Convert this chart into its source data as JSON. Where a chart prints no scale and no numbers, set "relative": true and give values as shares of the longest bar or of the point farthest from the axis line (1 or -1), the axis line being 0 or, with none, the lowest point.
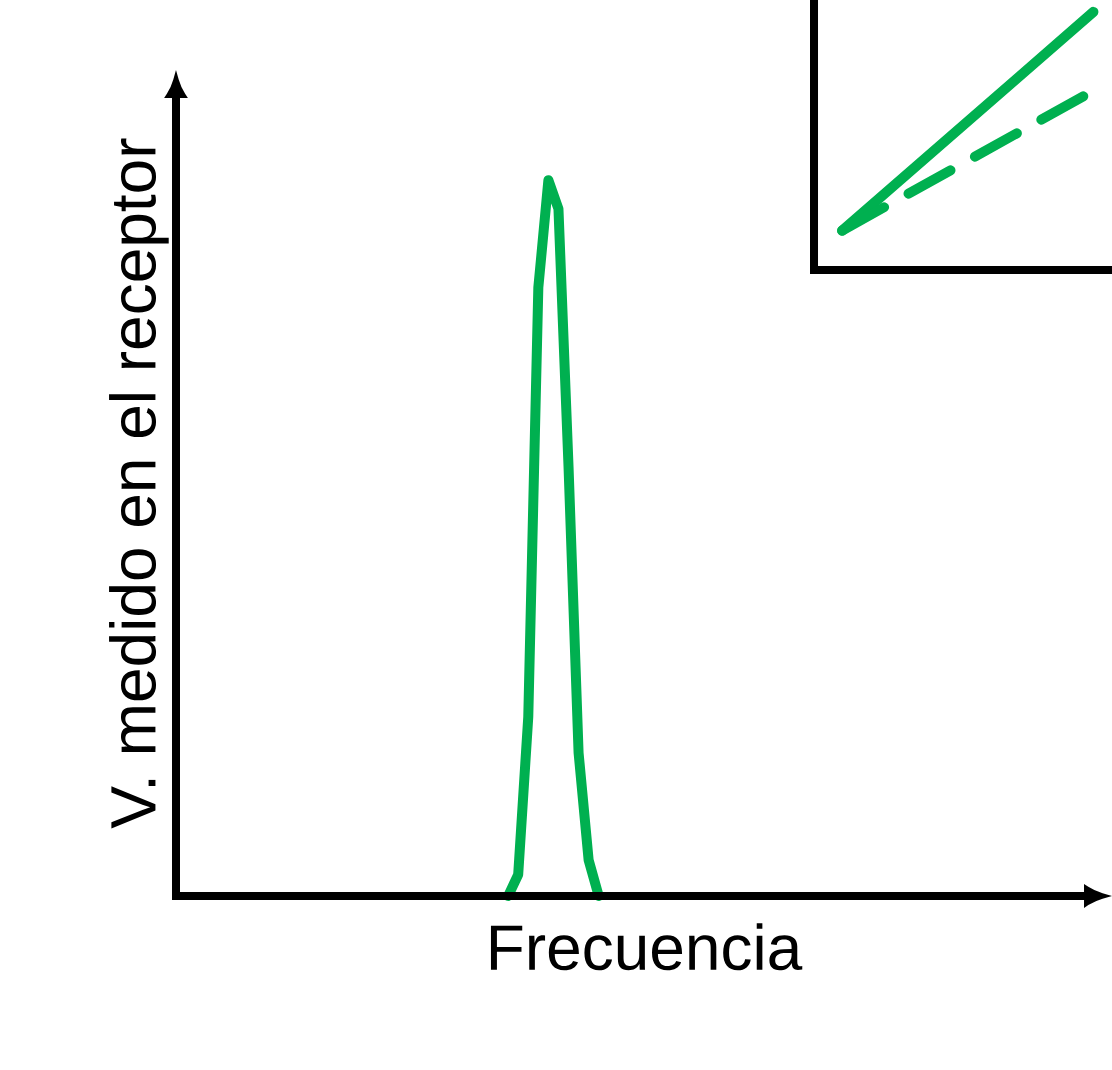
{
  "chart_data": [
    {
      "type": "line",
      "relative": true,
      "xlabel": "Frecuencia",
      "ylabel": "V. medido en el receptor",
      "tick_labels": false,
      "marker": "none",
      "categories": [
        null,
        null,
        null,
        null,
        null,
        null,
        null,
        null,
        null,
        null,
        null,
        null,
        null,
        null,
        null,
        null,
        null,
        null,
        null,
        null,
        null,
        null,
        null,
        null,
        null,
        null,
        null,
        null,
        null,
        null,
        null,
        null,
        null,
        null,
        null,
        null,
        null,
        null,
        null,
        null,
        null,
        null,
        null,
        null,
        null,
        null,
        null,
        null,
        null,
        null,
        null,
        null,
        null,
        null,
        null,
        null,
        null,
        null,
        null,
        null,
        null,
        null,
        null,
        null,
        null,
        null,
        null,
        null,
        null,
        null,
        null,
        null,
        null,
        null,
        null,
        null,
        null,
        null,
        null,
        null,
        null,
        null,
        null,
        null,
        null,
        null,
        null,
        null,
        null,
        null,
        null,
        null,
        null,
        null
      ],
      "series": [
        {
          "color": "#00b050",
          "line_style": "solid",
          "values": [
            null,
            null,
            null,
            null,
            null,
            null,
            null,
            null,
            null,
            null,
            null,
            null,
            null,
            null,
            null,
            null,
            null,
            null,
            null,
            null,
            null,
            null,
            null,
            null,
            null,
            null,
            null,
            null,
            null,
            null,
            null,
            null,
            null,
            0.0,
            0.03,
            0.25,
            0.85,
            1.0,
            0.96,
            0.6,
            0.2,
            0.05,
            0.0,
            null,
            null,
            null,
            null,
            null,
            null,
            null,
            null,
            null,
            null,
            null,
            null,
            null,
            null,
            null,
            null,
            null,
            null,
            null,
            null,
            null,
            null,
            null,
            null,
            null,
            null,
            null,
            null,
            null,
            null,
            null,
            null,
            null,
            null,
            null,
            null,
            null,
            null,
            null,
            null,
            null,
            null,
            null,
            null,
            null,
            null,
            null,
            null,
            null,
            null,
            null
          ]
        }
      ]
    },
    {
      "type": "line",
      "relative": true,
      "tick_labels": false,
      "marker": "none",
      "categories": [
        null,
        null
      ],
      "series": [
        {
          "color": "#00b050",
          "line_style": "solid",
          "values": [
            0,
            1
          ]
        },
        {
          "color": "#00b050",
          "line_style": "dashed",
          "values": [
            0,
            0.64
          ]
        }
      ]
    }
  ]
}
